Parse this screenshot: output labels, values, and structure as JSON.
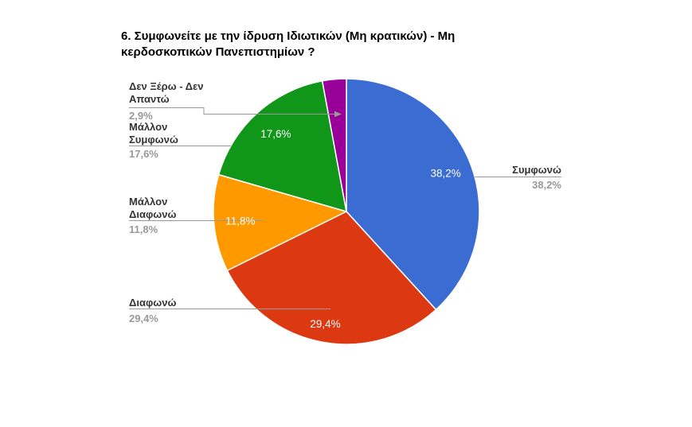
{
  "chart_data": {
    "type": "pie",
    "title": "6. Συμφωνείτε με την ίδρυση Ιδιωτικών (Μη κρατικών) - Μη κερδοσκοπικών Πανεπιστημίων ?",
    "legend_position": "callouts",
    "direction": "clockwise",
    "start_angle_deg": 0,
    "slices": [
      {
        "label": "Συμφωνώ",
        "value": 38.2,
        "pct_label": "38,2%",
        "color": "#3B6CD2"
      },
      {
        "label": "Διαφωνώ",
        "value": 29.4,
        "pct_label": "29,4%",
        "color": "#DC3912"
      },
      {
        "label": "Μάλλον Διαφωνώ",
        "value": 11.8,
        "pct_label": "11,8%",
        "color": "#FF9900"
      },
      {
        "label": "Μάλλον Συμφωνώ",
        "value": 17.6,
        "pct_label": "17,6%",
        "color": "#109618"
      },
      {
        "label": "Δεν Ξέρω - Δεν Απαντώ",
        "value": 2.9,
        "pct_label": "2,9%",
        "color": "#990099"
      }
    ]
  }
}
